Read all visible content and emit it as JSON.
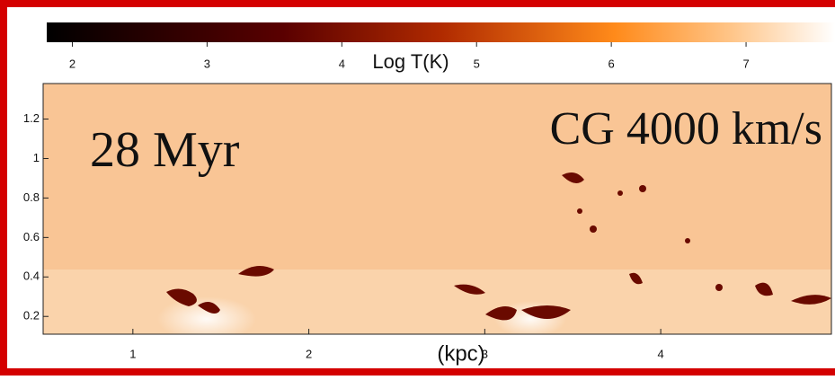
{
  "chart_data": {
    "type": "image",
    "annotations": [
      "28 Myr",
      "CG 4000 km/s"
    ],
    "colorbar_label": "Log T(K)",
    "clim": [
      1.81,
      7.66
    ],
    "cticks": [
      2,
      3,
      4,
      5,
      6,
      7
    ],
    "xlabel": "(kpc)",
    "xlim": [
      0.49,
      4.97
    ],
    "xticks": [
      1,
      2,
      3,
      4
    ],
    "ylim": [
      0.11,
      1.38
    ],
    "yticks": [
      0.2,
      0.4,
      0.6,
      0.8,
      1.0,
      1.2
    ]
  }
}
